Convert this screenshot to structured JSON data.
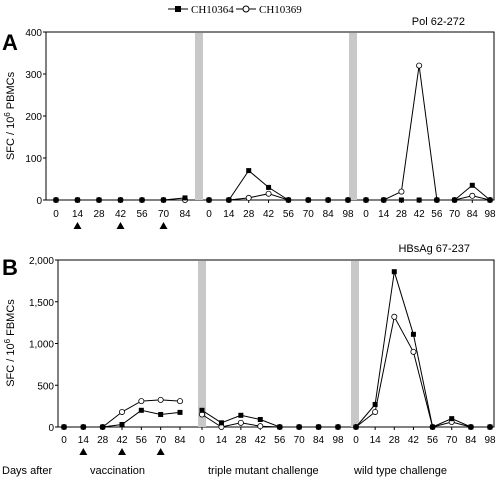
{
  "legend": {
    "series": [
      {
        "name": "CH10364",
        "marker": "filled-square"
      },
      {
        "name": "CH10369",
        "marker": "open-circle"
      }
    ]
  },
  "chart_data": [
    {
      "type": "line",
      "panel_label": "A",
      "title": "Pol 62-272",
      "ylabel_parts": [
        "SFC / 10",
        "6",
        " PBMCs"
      ],
      "ylim": [
        0,
        400
      ],
      "yticks": [
        "0",
        "100",
        "200",
        "300",
        "400"
      ],
      "segments": [
        {
          "x": [
            0,
            14,
            28,
            42,
            56,
            70,
            84
          ],
          "series": [
            {
              "name": "CH10364",
              "values": [
                0,
                0,
                0,
                0,
                0,
                0,
                5
              ]
            },
            {
              "name": "CH10369",
              "values": [
                0,
                0,
                0,
                0,
                0,
                0,
                0
              ]
            }
          ]
        },
        {
          "x": [
            0,
            14,
            28,
            42,
            56,
            70,
            84,
            98
          ],
          "series": [
            {
              "name": "CH10364",
              "values": [
                0,
                0,
                70,
                30,
                0,
                0,
                0,
                0
              ]
            },
            {
              "name": "CH10369",
              "values": [
                0,
                0,
                5,
                15,
                0,
                0,
                0,
                0
              ]
            }
          ]
        },
        {
          "x": [
            0,
            14,
            28,
            42,
            56,
            70,
            84,
            98
          ],
          "series": [
            {
              "name": "CH10364",
              "values": [
                0,
                0,
                0,
                0,
                0,
                0,
                35,
                0
              ]
            },
            {
              "name": "CH10369",
              "values": [
                0,
                0,
                20,
                320,
                0,
                0,
                10,
                0
              ]
            }
          ]
        }
      ],
      "segment_ticks": [
        [
          "0",
          "14",
          "28",
          "42",
          "56",
          "70",
          "84"
        ],
        [
          "0",
          "14",
          "28",
          "42",
          "56",
          "70",
          "84",
          "98"
        ],
        [
          "0",
          "14",
          "28",
          "42",
          "56",
          "70",
          "84",
          "98"
        ]
      ],
      "vaccination_days": [
        14,
        42,
        70
      ]
    },
    {
      "type": "line",
      "panel_label": "B",
      "title": "HBsAg 67-237",
      "ylabel_parts": [
        "SFC / 10",
        "6",
        " FBMCs"
      ],
      "ylim": [
        0,
        2000
      ],
      "yticks": [
        "0",
        "500",
        "1,000",
        "1,500",
        "2,000"
      ],
      "segments": [
        {
          "x": [
            0,
            14,
            28,
            42,
            56,
            70,
            84
          ],
          "series": [
            {
              "name": "CH10364",
              "values": [
                0,
                0,
                0,
                30,
                200,
                150,
                175
              ]
            },
            {
              "name": "CH10369",
              "values": [
                0,
                0,
                0,
                180,
                310,
                325,
                310
              ]
            }
          ]
        },
        {
          "x": [
            0,
            14,
            28,
            42,
            56,
            70,
            84,
            98
          ],
          "series": [
            {
              "name": "CH10364",
              "values": [
                200,
                50,
                140,
                90,
                0,
                0,
                0,
                0
              ]
            },
            {
              "name": "CH10369",
              "values": [
                150,
                0,
                50,
                10,
                0,
                0,
                0,
                0
              ]
            }
          ]
        },
        {
          "x": [
            0,
            14,
            28,
            42,
            56,
            70,
            84,
            98
          ],
          "series": [
            {
              "name": "CH10364",
              "values": [
                0,
                270,
                1860,
                1110,
                0,
                100,
                0,
                0
              ]
            },
            {
              "name": "CH10369",
              "values": [
                0,
                180,
                1320,
                900,
                0,
                60,
                0,
                0
              ]
            }
          ]
        }
      ],
      "segment_ticks": [
        [
          "0",
          "14",
          "28",
          "42",
          "56",
          "70",
          "84"
        ],
        [
          "0",
          "14",
          "28",
          "42",
          "56",
          "70",
          "84",
          "98"
        ],
        [
          "0",
          "14",
          "28",
          "42",
          "56",
          "70",
          "84",
          "98"
        ]
      ],
      "vaccination_days": [
        14,
        42,
        70
      ]
    }
  ],
  "footer": {
    "days_after": "Days after",
    "vaccination": "vaccination",
    "triple_mutant": "triple mutant challenge",
    "wild_type": "wild type challenge"
  },
  "colors": {
    "series_line": "#000000",
    "separator": "#c8c8c8",
    "axis": "#000000"
  }
}
